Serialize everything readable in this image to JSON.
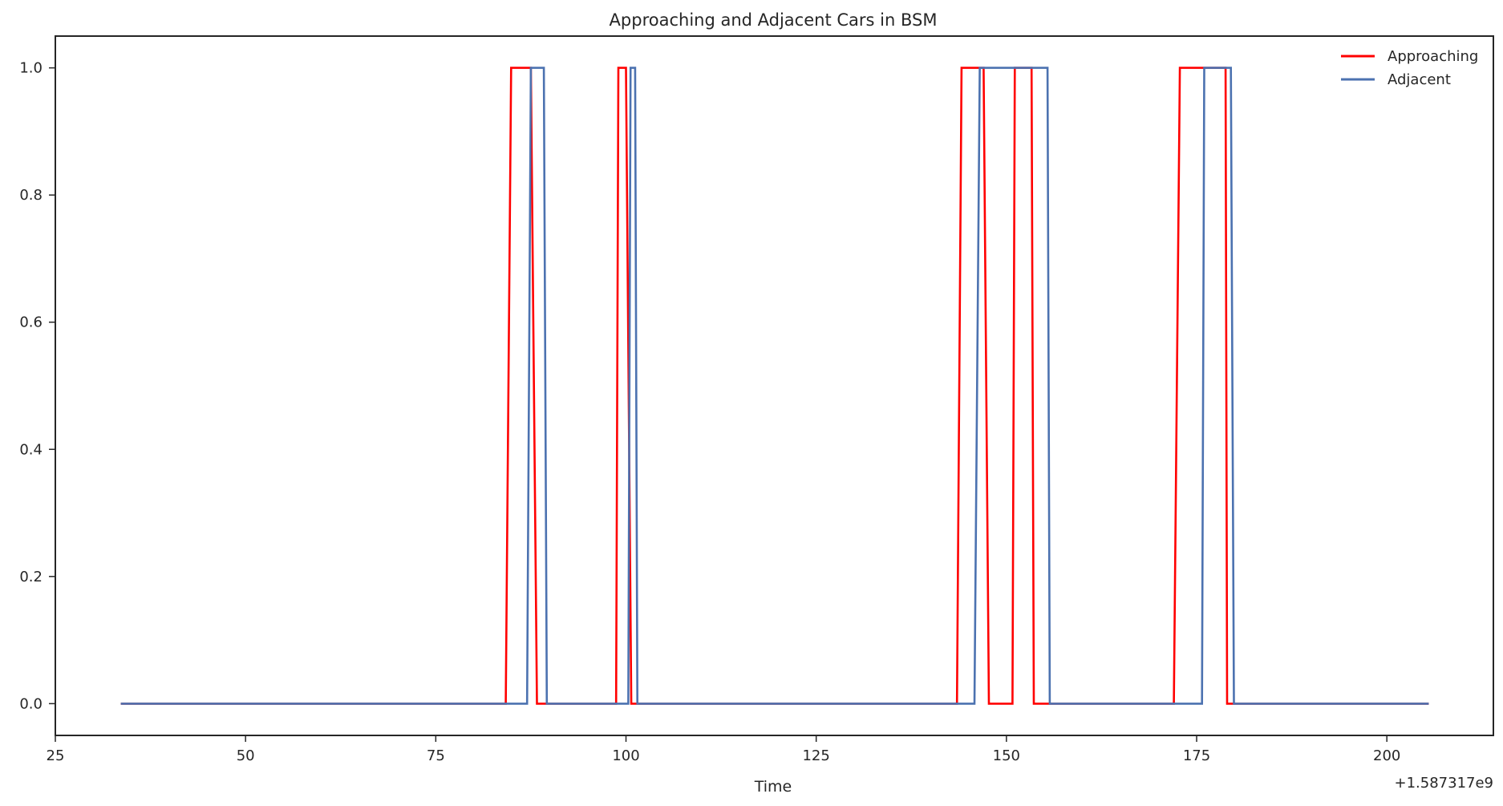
{
  "chart_data": {
    "type": "line",
    "title": "Approaching and Adjacent Cars in BSM",
    "xlabel": "Time",
    "ylabel": "",
    "x_offset_label": "+1.587317e9",
    "xlim": [
      25,
      214
    ],
    "ylim": [
      -0.05,
      1.05
    ],
    "xticks": [
      25,
      50,
      75,
      100,
      125,
      150,
      175,
      200
    ],
    "xtick_labels": [
      "25",
      "50",
      "75",
      "100",
      "125",
      "150",
      "175",
      "200"
    ],
    "yticks": [
      0.0,
      0.2,
      0.4,
      0.6,
      0.8,
      1.0
    ],
    "ytick_labels": [
      "0.0",
      "0.2",
      "0.4",
      "0.6",
      "0.8",
      "1.0"
    ],
    "grid": false,
    "legend_position": "top-right",
    "series": [
      {
        "name": "Approaching",
        "color": "#ff0000",
        "x": [
          33.6,
          84.2,
          84.9,
          87.5,
          88.3,
          98.7,
          99.0,
          100.0,
          100.7,
          143.5,
          144.1,
          147.0,
          147.7,
          150.8,
          151.1,
          153.3,
          153.6,
          172.0,
          172.8,
          176.0,
          178.8,
          179.0,
          205.5
        ],
        "y": [
          0,
          0,
          1,
          1,
          0,
          0,
          1,
          1,
          0,
          0,
          1,
          1,
          0,
          0,
          1,
          1,
          0,
          0,
          1,
          1,
          1,
          0,
          0
        ]
      },
      {
        "name": "Adjacent",
        "color": "#4c72b0",
        "x": [
          33.6,
          87.0,
          87.5,
          89.2,
          89.6,
          100.3,
          100.6,
          101.2,
          101.5,
          145.8,
          146.5,
          155.4,
          155.7,
          175.7,
          176.0,
          179.5,
          179.9,
          205.5
        ],
        "y": [
          0,
          0,
          1,
          1,
          0,
          0,
          1,
          1,
          0,
          0,
          1,
          1,
          0,
          0,
          1,
          1,
          0,
          0
        ]
      }
    ]
  }
}
